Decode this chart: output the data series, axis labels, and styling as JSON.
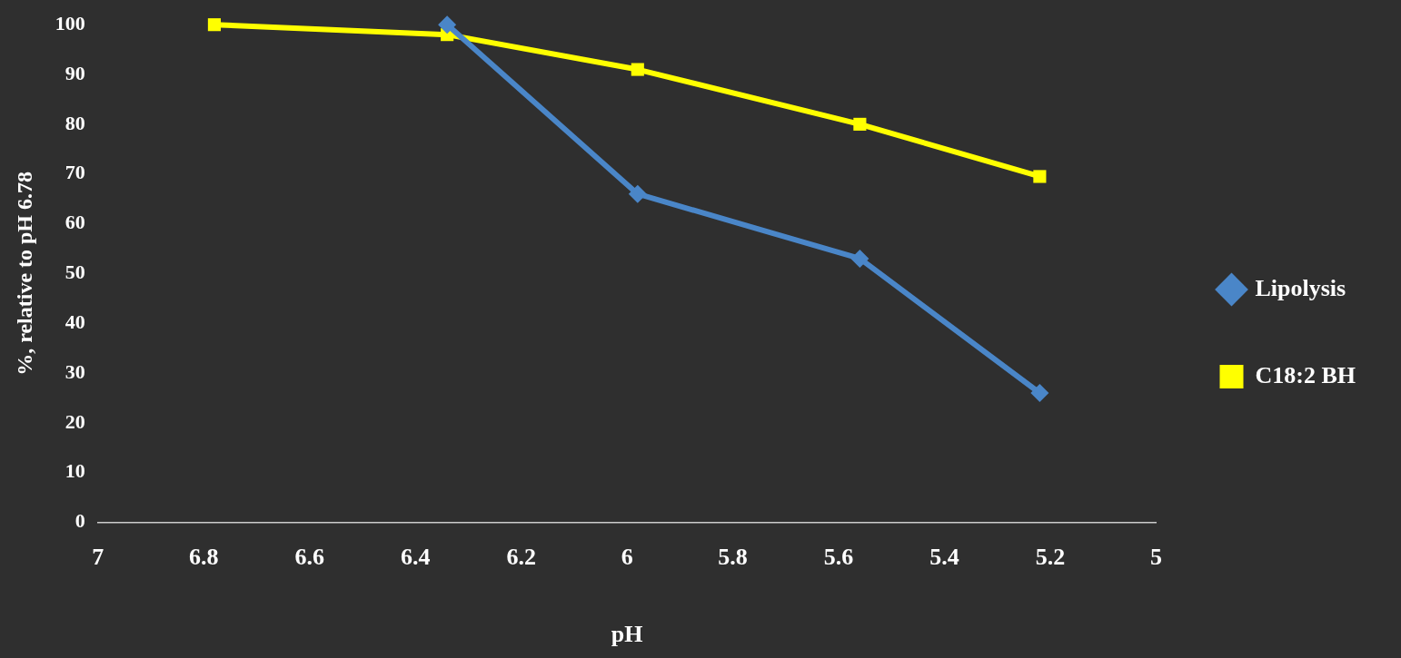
{
  "chart_data": {
    "type": "line",
    "xlabel": "pH",
    "ylabel": "%, relative to pH 6.78",
    "x": [
      6.78,
      6.34,
      5.98,
      5.56,
      5.22
    ],
    "series": [
      {
        "name": "Lipolysis",
        "color": "#4a86c8",
        "values": [
          null,
          100,
          66,
          53,
          26
        ],
        "marker": "diamond"
      },
      {
        "name": "C18:2 BH",
        "color": "#ffff00",
        "values": [
          100,
          98,
          91,
          80,
          69.5
        ],
        "marker": "square"
      }
    ],
    "xlim": [
      7,
      5
    ],
    "xticks": [
      7,
      6.8,
      6.6,
      6.4,
      6.2,
      6,
      5.8,
      5.6,
      5.4,
      5.2,
      5
    ],
    "ylim": [
      0,
      100
    ],
    "yticks": [
      0,
      10,
      20,
      30,
      40,
      50,
      60,
      70,
      80,
      90,
      100
    ],
    "grid": false,
    "legend": "right",
    "line_style": "solid"
  }
}
